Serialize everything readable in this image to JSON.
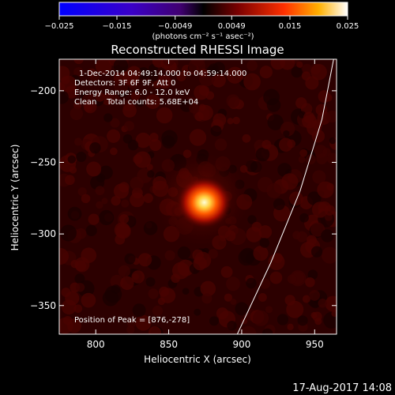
{
  "chart_data": {
    "type": "heatmap",
    "title": "Reconstructed RHESSI Image",
    "xlabel": "Heliocentric X (arcsec)",
    "ylabel": "Heliocentric Y (arcsec)",
    "xlim": [
      775,
      965
    ],
    "ylim": [
      -370,
      -178
    ],
    "xticks": [
      800,
      850,
      900,
      950
    ],
    "yticks": [
      -200,
      -250,
      -300,
      -350
    ],
    "colorbar": {
      "ticks": [
        -0.025,
        -0.015,
        -0.0049,
        0.0049,
        0.015,
        0.025
      ],
      "tick_labels": [
        "−0.025",
        "−0.015",
        "−0.0049",
        "0.0049",
        "0.015",
        "0.025"
      ],
      "label": "(photons cm⁻² s⁻¹ asec⁻²)"
    },
    "annotations": [
      "1-Dec-2014 04:49:14.000 to 04:59:14.000",
      "Detectors: 3F 6F 9F, Att 0",
      "Energy Range: 6.0 - 12.0 keV",
      "Clean    Total counts: 5.68E+04"
    ],
    "peak_label": "Position of Peak = [876,-278]",
    "peak": {
      "x": 876,
      "y": -278,
      "value": 0.025
    },
    "limb": [
      [
        897,
        -370
      ],
      [
        920,
        -320
      ],
      [
        940,
        -270
      ],
      [
        955,
        -220
      ],
      [
        963,
        -178
      ]
    ]
  },
  "footer": {
    "timestamp": "17-Aug-2017 14:08"
  }
}
